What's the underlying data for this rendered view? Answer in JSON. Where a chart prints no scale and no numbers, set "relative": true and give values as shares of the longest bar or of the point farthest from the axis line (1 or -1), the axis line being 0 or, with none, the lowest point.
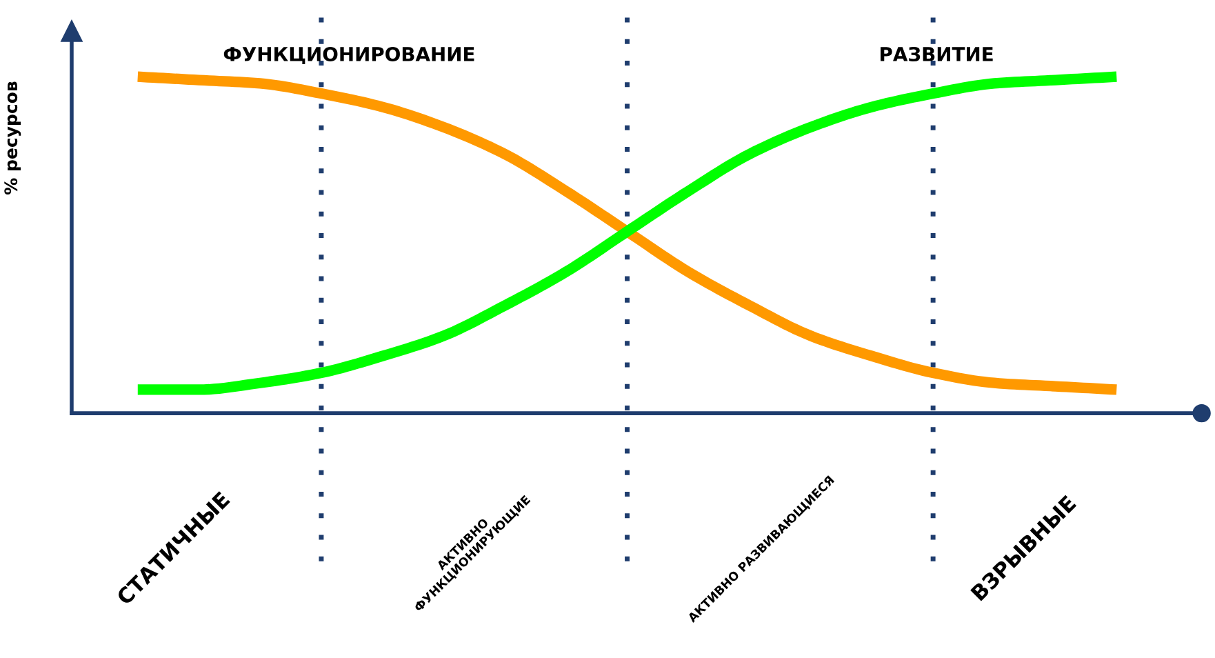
{
  "chart_data": {
    "type": "line",
    "relative": true,
    "ylabel": "% ресурсов",
    "categories": [
      null,
      null,
      null,
      null,
      null,
      null,
      null,
      null,
      null,
      null,
      null,
      null,
      null,
      null,
      null,
      null,
      null
    ],
    "series": [
      {
        "name": "ФУНКЦИОНИРОВАНИЕ",
        "color": "#ff9900",
        "values": [
          1.0,
          0.99,
          0.98,
          0.95,
          0.91,
          0.85,
          0.77,
          0.66,
          0.54,
          0.42,
          0.32,
          0.23,
          0.17,
          0.12,
          0.09,
          0.08,
          0.07
        ]
      },
      {
        "name": "РАЗВИТИЕ",
        "color": "#00ff00",
        "values": [
          0.07,
          0.07,
          0.09,
          0.12,
          0.17,
          0.23,
          0.32,
          0.42,
          0.54,
          0.66,
          0.77,
          0.85,
          0.91,
          0.95,
          0.98,
          0.99,
          1.0
        ]
      }
    ],
    "annotations": [
      "СТАТИЧНЫЕ",
      "АКТИВНО\nФУНКЦИОНИРУЮЩИЕ",
      "АКТИВНО РАЗВИВАЮЩИЕСЯ",
      "ВЗРЫВНЫЕ"
    ],
    "grid": "x",
    "legend": false,
    "marker": "none",
    "line_style": "solid"
  }
}
